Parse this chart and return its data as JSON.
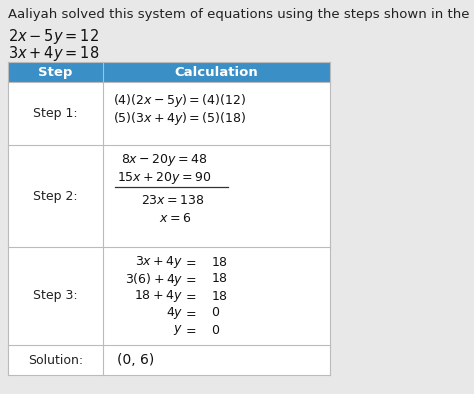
{
  "title": "Aaliyah solved this system of equations using the steps shown in the table.",
  "header_step": "Step",
  "header_calc": "Calculation",
  "header_bg": "#3a8fc7",
  "header_text_color": "#ffffff",
  "bg_color": "#e8e8e8",
  "table_bg": "#ffffff",
  "border_color": "#bbbbbb",
  "step1_label": "Step 1:",
  "step2_label": "Step 2:",
  "step3_label": "Step 3:",
  "solution_label": "Solution:",
  "solution_value": "(0, 6)",
  "font_size_title": 9.5,
  "font_size_body": 9.0,
  "font_size_header": 9.5
}
